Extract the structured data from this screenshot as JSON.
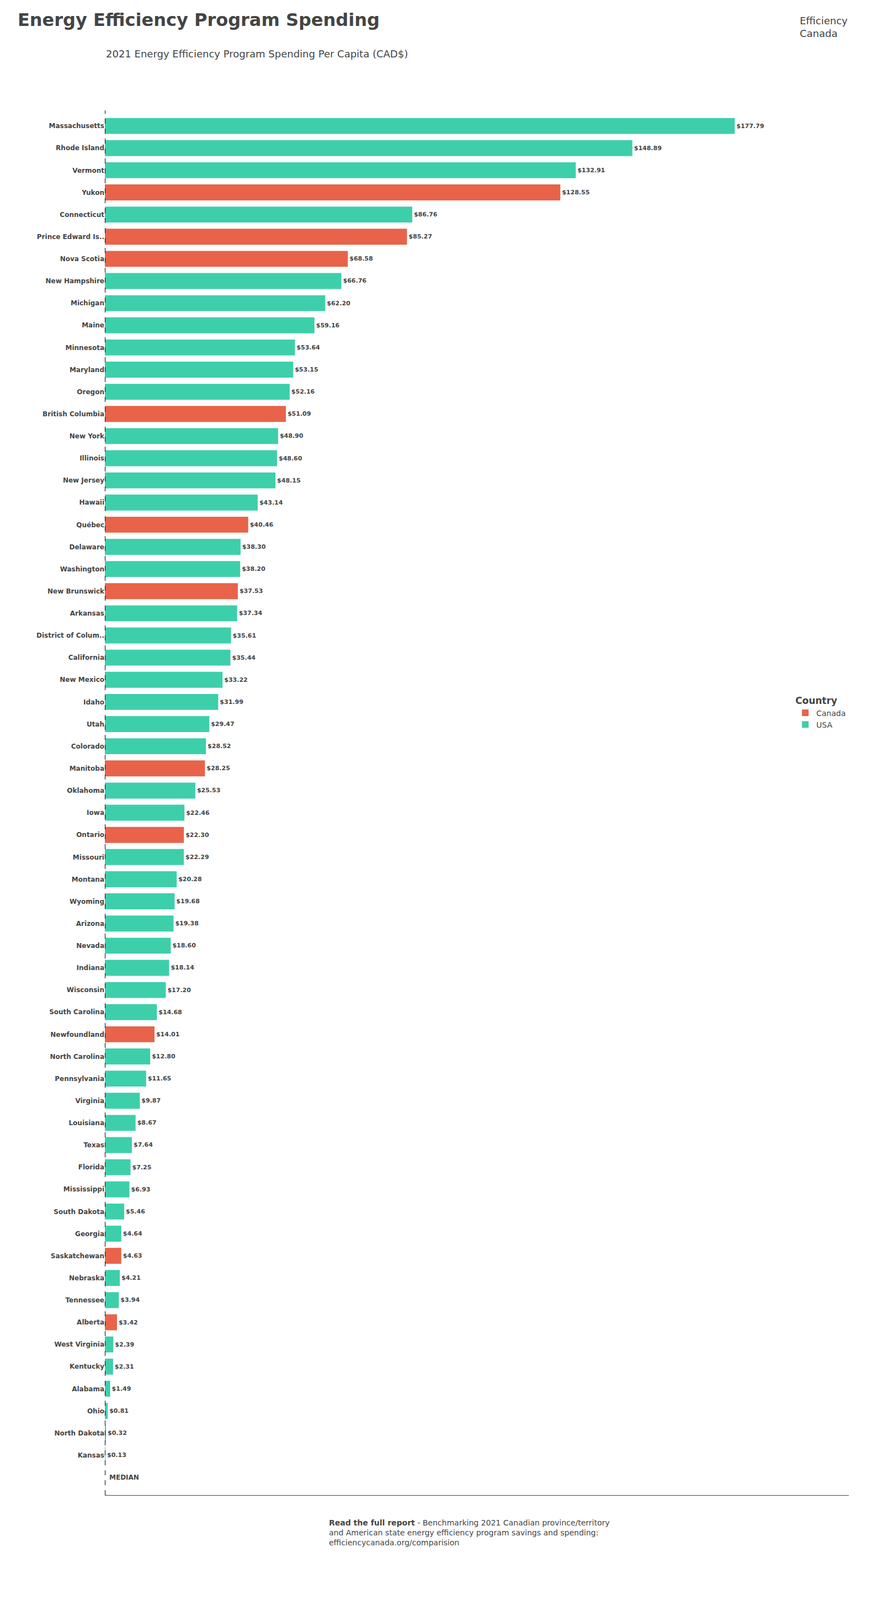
{
  "chart_data": {
    "type": "bar",
    "orientation": "horizontal",
    "title": "Energy Efficiency Program Spending",
    "subtitle": "2021 Energy Efficiency Program Spending Per Capita (CAD$)",
    "categories": [
      "Massachusetts",
      "Rhode Island",
      "Vermont",
      "Yukon",
      "Connecticut",
      "Prince Edward Is..",
      "Nova Scotia",
      "New Hampshire",
      "Michigan",
      "Maine",
      "Minnesota",
      "Maryland",
      "Oregon",
      "British Columbia",
      "New York",
      "Illinois",
      "New Jersey",
      "Hawaii",
      "Québec",
      "Delaware",
      "Washington",
      "New Brunswick",
      "Arkansas",
      "District of Colum..",
      "California",
      "New Mexico",
      "Idaho",
      "Utah",
      "Colorado",
      "Manitoba",
      "Oklahoma",
      "Iowa",
      "Ontario",
      "Missouri",
      "Montana",
      "Wyoming",
      "Arizona",
      "Nevada",
      "Indiana",
      "Wisconsin",
      "South Carolina",
      "Newfoundland",
      "North Carolina",
      "Pennsylvania",
      "Virginia",
      "Louisiana",
      "Texas",
      "Florida",
      "Mississippi",
      "South Dakota",
      "Georgia",
      "Saskatchewan",
      "Nebraska",
      "Tennessee",
      "Alberta",
      "West Virginia",
      "Kentucky",
      "Alabama",
      "Ohio",
      "North Dakota",
      "Kansas"
    ],
    "series": [
      {
        "name": "Canada",
        "color": "#e8634a",
        "values": [
          null,
          null,
          null,
          128.55,
          null,
          85.27,
          68.58,
          null,
          null,
          null,
          null,
          null,
          null,
          51.09,
          null,
          null,
          null,
          null,
          40.46,
          null,
          null,
          37.53,
          null,
          null,
          null,
          null,
          null,
          null,
          null,
          28.25,
          null,
          null,
          22.3,
          null,
          null,
          null,
          null,
          null,
          null,
          null,
          null,
          14.01,
          null,
          null,
          null,
          null,
          null,
          null,
          null,
          null,
          null,
          4.63,
          null,
          null,
          3.42,
          null,
          null,
          null,
          null,
          null,
          null
        ],
        "value_labels": [
          null,
          null,
          null,
          "$128.55",
          null,
          "$85.27",
          "$68.58",
          null,
          null,
          null,
          null,
          null,
          null,
          "$51.09",
          null,
          null,
          null,
          null,
          "$40.46",
          null,
          null,
          "$37.53",
          null,
          null,
          null,
          null,
          null,
          null,
          null,
          "$28.25",
          null,
          null,
          "$22.30",
          null,
          null,
          null,
          null,
          null,
          null,
          null,
          null,
          "$14.01",
          null,
          null,
          null,
          null,
          null,
          null,
          null,
          null,
          null,
          "$4.63",
          null,
          null,
          "$3.42",
          null,
          null,
          null,
          null,
          null,
          null
        ]
      },
      {
        "name": "USA",
        "color": "#3dcfaa",
        "values": [
          177.79,
          148.89,
          132.91,
          null,
          86.76,
          null,
          null,
          66.76,
          62.2,
          59.16,
          53.64,
          53.15,
          52.16,
          null,
          48.9,
          48.6,
          48.15,
          43.14,
          null,
          38.3,
          38.2,
          null,
          37.34,
          35.61,
          35.44,
          33.22,
          31.99,
          29.47,
          28.52,
          null,
          25.53,
          22.46,
          null,
          22.29,
          20.28,
          19.68,
          19.38,
          18.6,
          18.14,
          17.2,
          14.68,
          null,
          12.8,
          11.65,
          9.87,
          8.67,
          7.64,
          7.25,
          6.93,
          5.46,
          4.64,
          null,
          4.21,
          3.94,
          null,
          2.39,
          2.31,
          1.49,
          0.81,
          0.32,
          0.13
        ],
        "value_labels": [
          "$177.79",
          "$148.89",
          "$132.91",
          null,
          "$86.76",
          null,
          null,
          "$66.76",
          "$62.20",
          "$59.16",
          "$53.64",
          "$53.15",
          "$52.16",
          null,
          "$48.90",
          "$48.60",
          "$48.15",
          "$43.14",
          null,
          "$38.30",
          "$38.20",
          null,
          "$37.34",
          "$35.61",
          "$35.44",
          "$33.22",
          "$31.99",
          "$29.47",
          "$28.52",
          null,
          "$25.53",
          "$22.46",
          null,
          "$22.29",
          "$20.28",
          "$19.68",
          "$19.38",
          "$18.60",
          "$18.14",
          "$17.20",
          "$14.68",
          null,
          "$12.80",
          "$11.65",
          "$9.87",
          "$8.67",
          "$7.64",
          "$7.25",
          "$6.93",
          "$5.46",
          "$4.64",
          null,
          "$4.21",
          "$3.94",
          null,
          "$2.39",
          "$2.31",
          "$1.49",
          "$0.81",
          "$0.32",
          "$0.13"
        ]
      }
    ],
    "xlim": [
      0,
      210
    ],
    "tick_labels": "y",
    "grid": false,
    "data_labels": true,
    "legend": "right",
    "legend_title": "Country",
    "annotations": [
      {
        "text": "MEDIAN",
        "x": 0
      }
    ],
    "footer": [
      [
        "Read the full report",
        " - Benchmarking 2021 Canadian province/territory"
      ],
      [
        "and American state energy efficiency program savings and spending:"
      ],
      [
        "efficiencycanada.org/comparision"
      ]
    ],
    "logo": "Efficiency\nCanada"
  }
}
